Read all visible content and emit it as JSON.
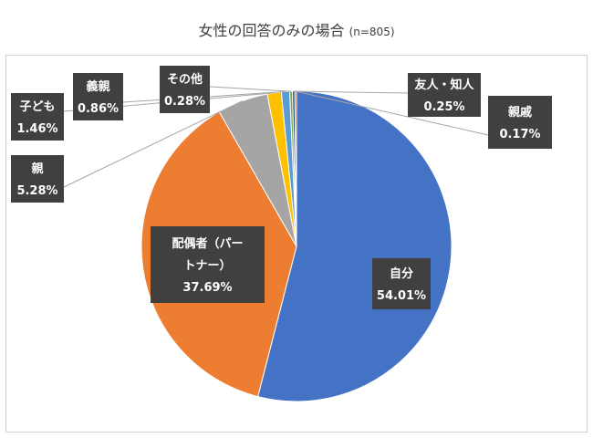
{
  "title": "女性の回答のみの場合",
  "subtitle": "(n=805)",
  "chart_data": {
    "type": "pie",
    "start_angle_deg": 0,
    "direction": "clockwise",
    "slices": [
      {
        "name": "自分",
        "value": 54.01,
        "label": "54.01%",
        "color": "#4472C4"
      },
      {
        "name": "配偶者（パートナー）",
        "value": 37.69,
        "label": "37.69%",
        "color": "#ED7D31"
      },
      {
        "name": "親",
        "value": 5.28,
        "label": "5.28%",
        "color": "#A5A5A5"
      },
      {
        "name": "子ども",
        "value": 1.46,
        "label": "1.46%",
        "color": "#FFC000"
      },
      {
        "name": "義親",
        "value": 0.86,
        "label": "0.86%",
        "color": "#5B9BD5"
      },
      {
        "name": "その他",
        "value": 0.28,
        "label": "0.28%",
        "color": "#70AD47"
      },
      {
        "name": "友人・知人",
        "value": 0.25,
        "label": "0.25%",
        "color": "#264478"
      },
      {
        "name": "親戚",
        "value": 0.17,
        "label": "0.17%",
        "color": "#9E480E"
      }
    ]
  }
}
